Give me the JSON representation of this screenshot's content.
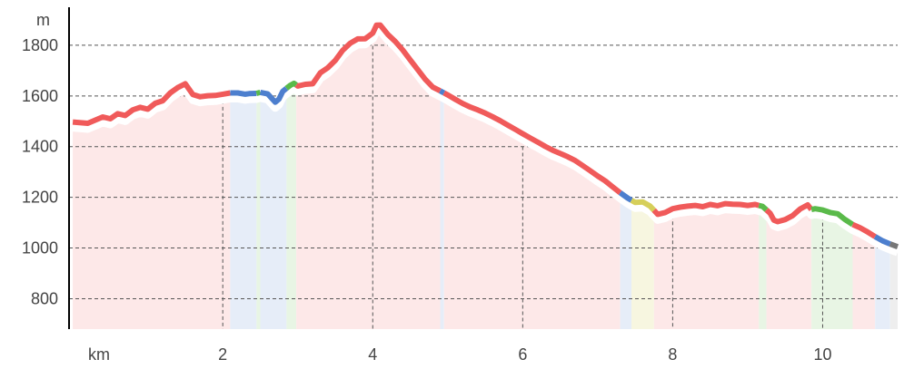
{
  "chart_data": {
    "type": "area",
    "xlabel": "km",
    "ylabel": "m",
    "xlim": [
      -0.05,
      11.0
    ],
    "ylim": [
      680,
      1950
    ],
    "x_ticks": [
      2,
      4,
      6,
      8,
      10
    ],
    "y_ticks": [
      800,
      1000,
      1200,
      1400,
      1600,
      1800
    ],
    "grid": {
      "horizontal": true,
      "vertical": true
    },
    "series": [
      {
        "values": [
          [
            0.0,
            1497
          ],
          [
            0.2,
            1492
          ],
          [
            0.4,
            1517
          ],
          [
            0.5,
            1510
          ],
          [
            0.6,
            1530
          ],
          [
            0.7,
            1523
          ],
          [
            0.8,
            1545
          ],
          [
            0.9,
            1555
          ],
          [
            1.0,
            1548
          ],
          [
            1.1,
            1571
          ],
          [
            1.2,
            1581
          ],
          [
            1.3,
            1612
          ],
          [
            1.4,
            1633
          ],
          [
            1.5,
            1648
          ],
          [
            1.6,
            1606
          ],
          [
            1.7,
            1597
          ],
          [
            1.8,
            1601
          ],
          [
            1.9,
            1602
          ],
          [
            2.0,
            1607
          ],
          [
            2.1,
            1612
          ],
          [
            2.2,
            1612
          ],
          [
            2.3,
            1607
          ],
          [
            2.35,
            1609
          ],
          [
            2.45,
            1610
          ],
          [
            2.5,
            1614
          ],
          [
            2.6,
            1608
          ],
          [
            2.7,
            1575
          ],
          [
            2.75,
            1588
          ],
          [
            2.8,
            1618
          ],
          [
            2.9,
            1642
          ],
          [
            2.95,
            1650
          ],
          [
            3.0,
            1639
          ],
          [
            3.1,
            1646
          ],
          [
            3.2,
            1648
          ],
          [
            3.3,
            1691
          ],
          [
            3.4,
            1711
          ],
          [
            3.5,
            1740
          ],
          [
            3.6,
            1780
          ],
          [
            3.7,
            1808
          ],
          [
            3.8,
            1825
          ],
          [
            3.9,
            1826
          ],
          [
            4.0,
            1848
          ],
          [
            4.05,
            1879
          ],
          [
            4.1,
            1880
          ],
          [
            4.2,
            1843
          ],
          [
            4.3,
            1815
          ],
          [
            4.4,
            1781
          ],
          [
            4.5,
            1742
          ],
          [
            4.6,
            1704
          ],
          [
            4.7,
            1666
          ],
          [
            4.8,
            1635
          ],
          [
            4.9,
            1620
          ],
          [
            5.0,
            1604
          ],
          [
            5.1,
            1587
          ],
          [
            5.2,
            1570
          ],
          [
            5.3,
            1556
          ],
          [
            5.4,
            1545
          ],
          [
            5.5,
            1532
          ],
          [
            5.6,
            1518
          ],
          [
            5.7,
            1502
          ],
          [
            5.8,
            1485
          ],
          [
            5.9,
            1468
          ],
          [
            6.0,
            1451
          ],
          [
            6.1,
            1434
          ],
          [
            6.2,
            1418
          ],
          [
            6.3,
            1401
          ],
          [
            6.4,
            1386
          ],
          [
            6.5,
            1373
          ],
          [
            6.6,
            1360
          ],
          [
            6.7,
            1345
          ],
          [
            6.8,
            1325
          ],
          [
            6.9,
            1305
          ],
          [
            7.0,
            1284
          ],
          [
            7.1,
            1265
          ],
          [
            7.2,
            1241
          ],
          [
            7.3,
            1218
          ],
          [
            7.4,
            1197
          ],
          [
            7.5,
            1180
          ],
          [
            7.6,
            1182
          ],
          [
            7.7,
            1165
          ],
          [
            7.8,
            1133
          ],
          [
            7.9,
            1140
          ],
          [
            8.0,
            1155
          ],
          [
            8.1,
            1161
          ],
          [
            8.2,
            1165
          ],
          [
            8.3,
            1168
          ],
          [
            8.4,
            1163
          ],
          [
            8.5,
            1172
          ],
          [
            8.6,
            1167
          ],
          [
            8.7,
            1175
          ],
          [
            8.8,
            1173
          ],
          [
            8.9,
            1172
          ],
          [
            9.0,
            1168
          ],
          [
            9.1,
            1172
          ],
          [
            9.2,
            1164
          ],
          [
            9.3,
            1137
          ],
          [
            9.35,
            1110
          ],
          [
            9.4,
            1104
          ],
          [
            9.5,
            1112
          ],
          [
            9.6,
            1128
          ],
          [
            9.7,
            1154
          ],
          [
            9.8,
            1170
          ],
          [
            9.85,
            1152
          ],
          [
            9.9,
            1155
          ],
          [
            10.0,
            1150
          ],
          [
            10.1,
            1140
          ],
          [
            10.2,
            1135
          ],
          [
            10.3,
            1112
          ],
          [
            10.4,
            1093
          ],
          [
            10.5,
            1080
          ],
          [
            10.6,
            1063
          ],
          [
            10.7,
            1045
          ],
          [
            10.8,
            1028
          ],
          [
            10.9,
            1016
          ],
          [
            11.0,
            1005
          ]
        ]
      }
    ],
    "segments": [
      {
        "from": 0.0,
        "to": 2.1,
        "color": "#f05a5a",
        "band": "#fde8e8"
      },
      {
        "from": 2.1,
        "to": 2.45,
        "color": "#4d7fce",
        "band": "#e6edf8"
      },
      {
        "from": 2.45,
        "to": 2.5,
        "color": "#5aba4a",
        "band": "#e8f5e4"
      },
      {
        "from": 2.5,
        "to": 2.85,
        "color": "#4d7fce",
        "band": "#e6edf8"
      },
      {
        "from": 2.85,
        "to": 2.98,
        "color": "#5aba4a",
        "band": "#e8f5e4"
      },
      {
        "from": 2.98,
        "to": 4.9,
        "color": "#f05a5a",
        "band": "#fde8e8"
      },
      {
        "from": 4.9,
        "to": 4.95,
        "color": "#4d7fce",
        "band": "#e6edf8"
      },
      {
        "from": 4.95,
        "to": 7.3,
        "color": "#f05a5a",
        "band": "#fde8e8"
      },
      {
        "from": 7.3,
        "to": 7.45,
        "color": "#4d7fce",
        "band": "#e6edf8"
      },
      {
        "from": 7.45,
        "to": 7.75,
        "color": "#d6cf5a",
        "band": "#f7f6e0"
      },
      {
        "from": 7.75,
        "to": 9.15,
        "color": "#f05a5a",
        "band": "#fde8e8"
      },
      {
        "from": 9.15,
        "to": 9.25,
        "color": "#5aba4a",
        "band": "#e8f5e4"
      },
      {
        "from": 9.25,
        "to": 9.85,
        "color": "#f05a5a",
        "band": "#fde8e8"
      },
      {
        "from": 9.85,
        "to": 10.4,
        "color": "#5aba4a",
        "band": "#e8f5e4"
      },
      {
        "from": 10.4,
        "to": 10.7,
        "color": "#f05a5a",
        "band": "#fde8e8"
      },
      {
        "from": 10.7,
        "to": 10.9,
        "color": "#4d7fce",
        "band": "#e6edf8"
      },
      {
        "from": 10.9,
        "to": 11.0,
        "color": "#777777",
        "band": "#eeeeee"
      }
    ]
  }
}
